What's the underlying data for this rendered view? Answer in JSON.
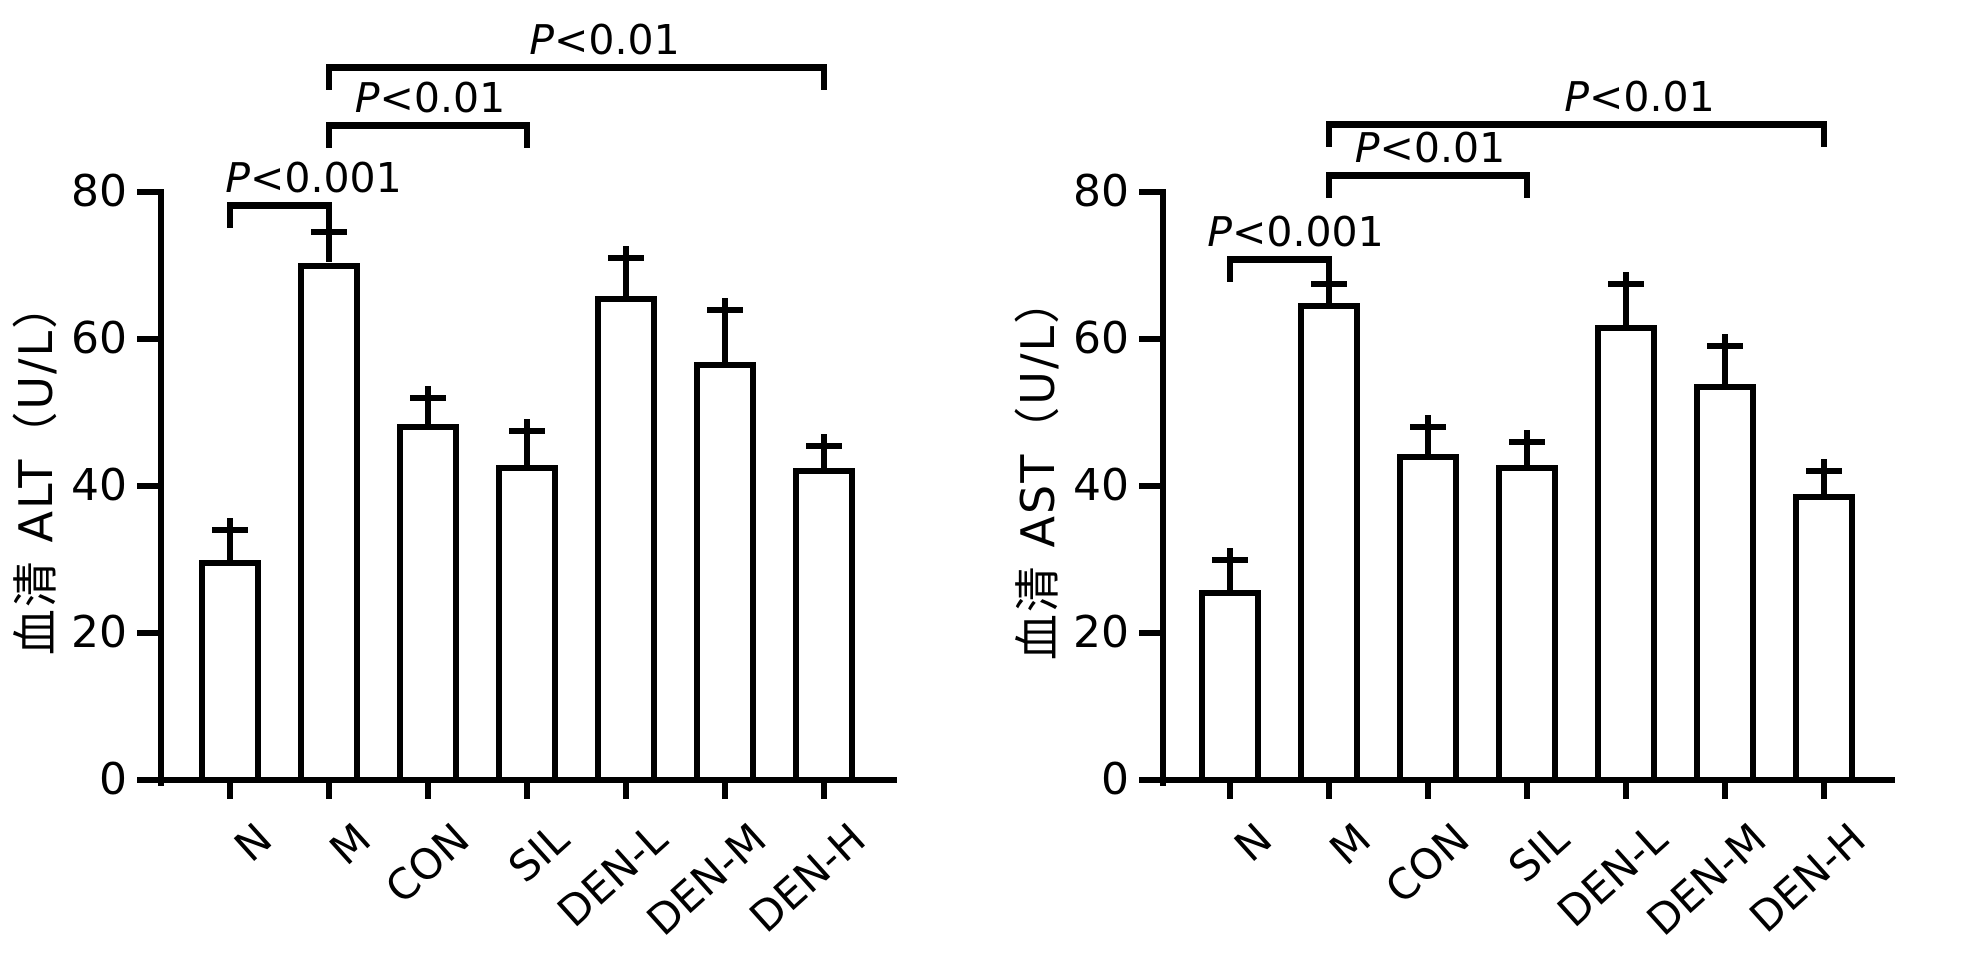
{
  "figure": {
    "background_color": "#ffffff",
    "ink_color": "#000000"
  },
  "chart_data": [
    {
      "type": "bar",
      "id": "alt",
      "title": "",
      "xlabel": "",
      "ylabel": "血清 ALT（U/L）",
      "categories": [
        "N",
        "M",
        "CON",
        "SIL",
        "DEN-L",
        "DEN-M",
        "DEN-H"
      ],
      "values": [
        29.5,
        70,
        48,
        42.5,
        65.5,
        56.5,
        42
      ],
      "errors": [
        4.5,
        4.5,
        4,
        5,
        5.5,
        7.5,
        3.5
      ],
      "ylim": [
        0,
        80
      ],
      "yticks": [
        0,
        20,
        40,
        60,
        80
      ],
      "grid": false,
      "legend": "none",
      "bar_fill": "#ffffff",
      "bar_edge": "#000000",
      "error_bar_direction": "upper-only",
      "significance": [
        {
          "from": "N",
          "to": "M",
          "label": "P<0.001"
        },
        {
          "from": "M",
          "to": "SIL",
          "label": "P<0.01"
        },
        {
          "from": "M",
          "to": "DEN-H",
          "label": "P<0.01"
        }
      ]
    },
    {
      "type": "bar",
      "id": "ast",
      "title": "",
      "xlabel": "",
      "ylabel": "血清 AST（U/L）",
      "categories": [
        "N",
        "M",
        "CON",
        "SIL",
        "DEN-L",
        "DEN-M",
        "DEN-H"
      ],
      "values": [
        25.5,
        64.5,
        44,
        42.5,
        61.5,
        53.5,
        38.5
      ],
      "errors": [
        4.5,
        3,
        4,
        3.5,
        6,
        5.5,
        3.5
      ],
      "ylim": [
        0,
        80
      ],
      "yticks": [
        0,
        20,
        40,
        60,
        80
      ],
      "grid": false,
      "legend": "none",
      "bar_fill": "#ffffff",
      "bar_edge": "#000000",
      "error_bar_direction": "upper-only",
      "significance": [
        {
          "from": "N",
          "to": "M",
          "label": "P<0.001"
        },
        {
          "from": "M",
          "to": "SIL",
          "label": "P<0.01"
        },
        {
          "from": "M",
          "to": "DEN-H",
          "label": "P<0.01"
        }
      ]
    }
  ]
}
